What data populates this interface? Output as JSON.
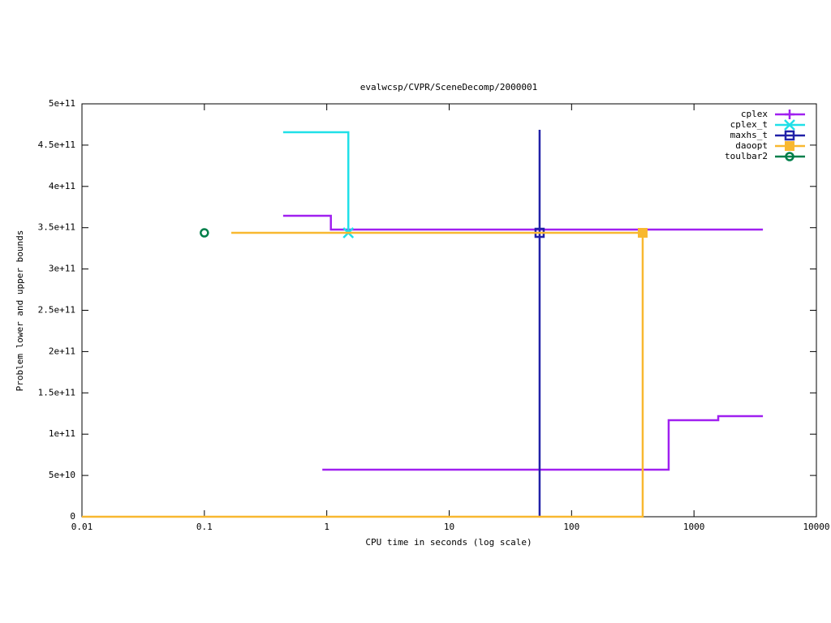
{
  "chart_data": {
    "type": "step-line",
    "title": "evalwcsp/CVPR/SceneDecomp/2000001",
    "xlabel": "CPU time in seconds (log scale)",
    "ylabel": "Problem lower and upper bounds",
    "xscale": "log",
    "xlim": [
      0.01,
      10000
    ],
    "xticks": [
      0.01,
      0.1,
      1,
      10,
      100,
      1000,
      10000
    ],
    "ylim": [
      0,
      500000000000
    ],
    "yticks": [
      0,
      {
        "value": 50000000000,
        "label": "5e+10"
      },
      {
        "value": 100000000000,
        "label": "1e+11"
      },
      {
        "value": 150000000000,
        "label": "1.5e+11"
      },
      {
        "value": 200000000000,
        "label": "2e+11"
      },
      {
        "value": 250000000000,
        "label": "2.5e+11"
      },
      {
        "value": 300000000000,
        "label": "3e+11"
      },
      {
        "value": 350000000000,
        "label": "3.5e+11"
      },
      {
        "value": 400000000000,
        "label": "4e+11"
      },
      {
        "value": 450000000000,
        "label": "4.5e+11"
      },
      {
        "value": 500000000000,
        "label": "5e+11"
      }
    ],
    "legend": "top-right",
    "series": [
      {
        "name": "cplex",
        "color": "#a020f0",
        "marker": "plus",
        "x": [
          0.44,
          1.08,
          1.08,
          3656,
          null,
          0.92,
          621,
          621,
          1578,
          1578,
          3656
        ],
        "values": [
          364400000000,
          364400000000,
          347700000000,
          347700000000,
          null,
          57000000000,
          57000000000,
          116900000000,
          116900000000,
          121800000000,
          121800000000
        ],
        "points": {
          "x": [],
          "values": []
        }
      },
      {
        "name": "cplex_t",
        "color": "#20e0e8",
        "marker": "cross",
        "x": [
          0.44,
          1.5,
          1.5
        ],
        "values": [
          465600000000,
          465600000000,
          343800000000
        ],
        "points": {
          "x": [
            1.5
          ],
          "values": [
            343800000000
          ]
        }
      },
      {
        "name": "maxhs_t",
        "color": "#2121a8",
        "marker": "square-open",
        "x": [
          54.8,
          54.8
        ],
        "values": [
          468600000000,
          0
        ],
        "points": {
          "x": [
            54.8
          ],
          "values": [
            343800000000
          ]
        }
      },
      {
        "name": "daoopt",
        "color": "#f8b830",
        "marker": "square-filled",
        "x": [
          0.166,
          381,
          381,
          0.01
        ],
        "values": [
          343800000000,
          343800000000,
          0,
          0
        ],
        "points": {
          "x": [
            381
          ],
          "values": [
            343800000000
          ]
        }
      },
      {
        "name": "toulbar2",
        "color": "#007f4a",
        "marker": "circle",
        "x": [],
        "values": [],
        "points": {
          "x": [
            0.1
          ],
          "values": [
            343800000000
          ]
        }
      }
    ]
  }
}
